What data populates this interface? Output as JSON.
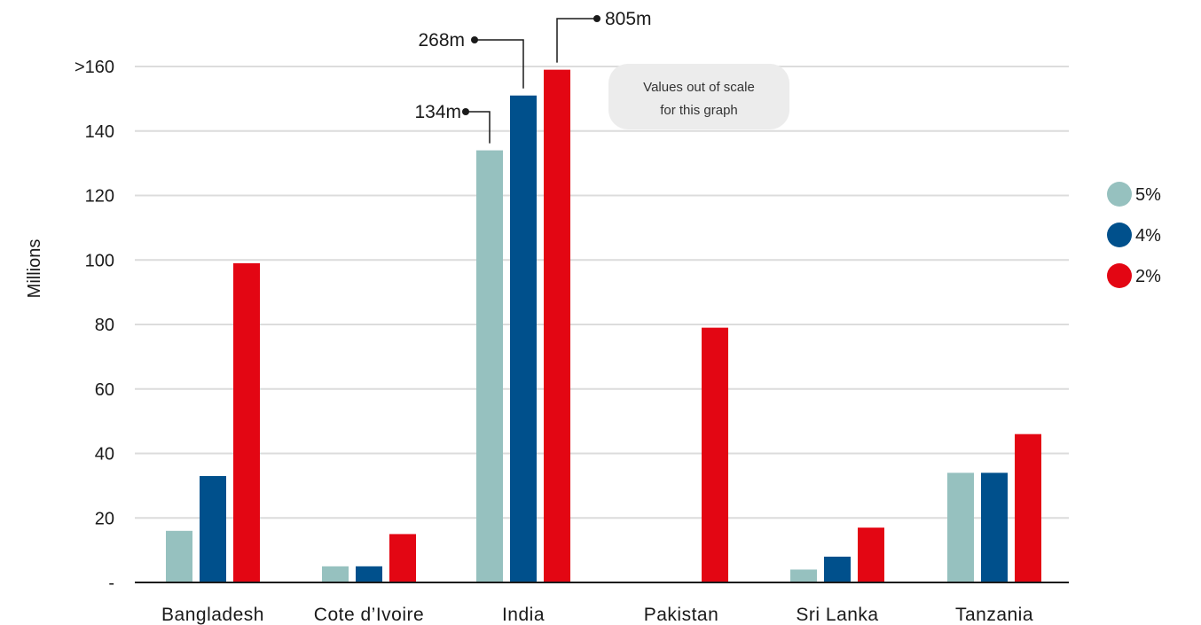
{
  "chart_data": {
    "type": "bar",
    "ylabel": "Millions",
    "ylim": [
      0,
      160
    ],
    "yticks": [
      {
        "value": 0,
        "label": "-"
      },
      {
        "value": 20,
        "label": "20"
      },
      {
        "value": 40,
        "label": "40"
      },
      {
        "value": 60,
        "label": "60"
      },
      {
        "value": 80,
        "label": "80"
      },
      {
        "value": 100,
        "label": "100"
      },
      {
        "value": 120,
        "label": "120"
      },
      {
        "value": 140,
        "label": "140"
      },
      {
        "value": 160,
        "label": ">160"
      }
    ],
    "grid": true,
    "legend_position": "right",
    "categories": [
      "Bangladesh",
      "Cote d’Ivoire",
      "India",
      "Pakistan",
      "Sri Lanka",
      "Tanzania"
    ],
    "series": [
      {
        "name": "5%",
        "color": "#96c1bf",
        "values": [
          16,
          5,
          134,
          0,
          4,
          34
        ]
      },
      {
        "name": "4%",
        "color": "#00508c",
        "values": [
          33,
          5,
          151,
          0,
          8,
          34
        ]
      },
      {
        "name": "2%",
        "color": "#e30613",
        "values": [
          99,
          15,
          159,
          79,
          17,
          46
        ]
      }
    ],
    "callouts": [
      {
        "category": "India",
        "series": "5%",
        "label": "134m"
      },
      {
        "category": "India",
        "series": "4%",
        "label": "268m"
      },
      {
        "category": "India",
        "series": "2%",
        "label": "805m"
      }
    ],
    "annotation": {
      "lines": [
        "Values out of scale",
        "for this graph"
      ]
    }
  }
}
